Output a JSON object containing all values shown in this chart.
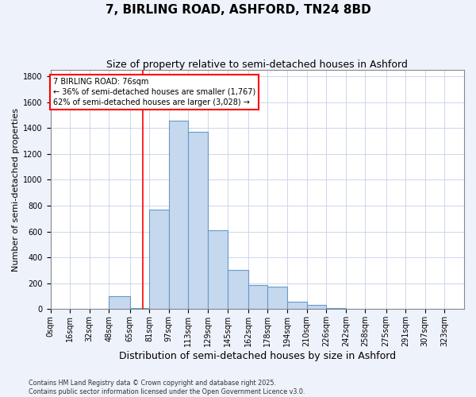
{
  "title": "7, BIRLING ROAD, ASHFORD, TN24 8BD",
  "subtitle": "Size of property relative to semi-detached houses in Ashford",
  "xlabel": "Distribution of semi-detached houses by size in Ashford",
  "ylabel": "Number of semi-detached properties",
  "bin_labels": [
    "0sqm",
    "16sqm",
    "32sqm",
    "48sqm",
    "65sqm",
    "81sqm",
    "97sqm",
    "113sqm",
    "129sqm",
    "145sqm",
    "162sqm",
    "178sqm",
    "194sqm",
    "210sqm",
    "226sqm",
    "242sqm",
    "258sqm",
    "275sqm",
    "291sqm",
    "307sqm",
    "323sqm"
  ],
  "bin_edges": [
    0,
    16,
    32,
    48,
    65,
    81,
    97,
    113,
    129,
    145,
    162,
    178,
    194,
    210,
    226,
    242,
    258,
    275,
    291,
    307,
    323
  ],
  "bar_heights": [
    0,
    0,
    2,
    100,
    5,
    770,
    1460,
    1370,
    610,
    300,
    185,
    175,
    60,
    35,
    10,
    2,
    2,
    0,
    0,
    0,
    0
  ],
  "bar_color": "#c5d8ee",
  "bar_edge_color": "#6699cc",
  "red_line_x": 76,
  "annotation_text": "7 BIRLING ROAD: 76sqm\n← 36% of semi-detached houses are smaller (1,767)\n62% of semi-detached houses are larger (3,028) →",
  "ylim": [
    0,
    1850
  ],
  "yticks": [
    0,
    200,
    400,
    600,
    800,
    1000,
    1200,
    1400,
    1600,
    1800
  ],
  "title_fontsize": 11,
  "subtitle_fontsize": 9,
  "xlabel_fontsize": 9,
  "ylabel_fontsize": 8,
  "tick_fontsize": 7,
  "annot_fontsize": 7,
  "footer_text": "Contains HM Land Registry data © Crown copyright and database right 2025.\nContains public sector information licensed under the Open Government Licence v3.0.",
  "background_color": "#eef2fa",
  "plot_background": "#ffffff",
  "grid_color": "#c8d0e8"
}
